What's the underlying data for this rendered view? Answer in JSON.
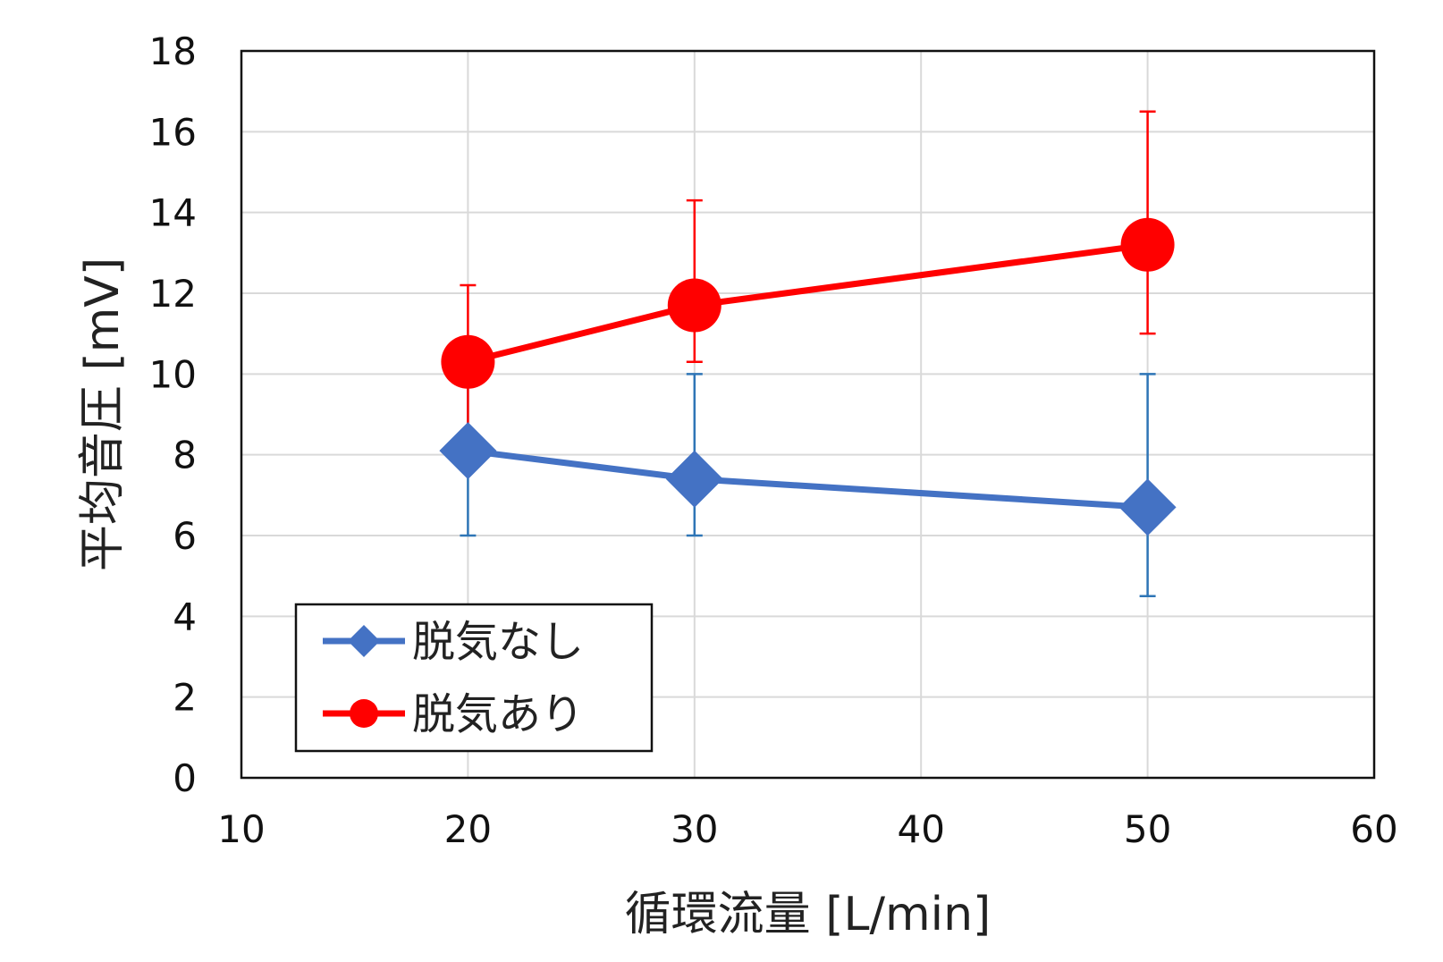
{
  "chart_data": {
    "type": "line",
    "xlabel": "循環流量 [L/min]",
    "ylabel": "平均音圧 [mV]",
    "xlim": [
      10,
      60
    ],
    "ylim": [
      0,
      18
    ],
    "xticks": [
      "10",
      "20",
      "30",
      "40",
      "50",
      "60"
    ],
    "yticks": [
      "0",
      "2",
      "4",
      "6",
      "8",
      "10",
      "12",
      "14",
      "16",
      "18"
    ],
    "grid": true,
    "legend_position": "bottom-left",
    "series": [
      {
        "name": "脱気なし",
        "color": "#4472C4",
        "marker": "diamond",
        "x": [
          20,
          30,
          50
        ],
        "y": [
          8.1,
          7.4,
          6.7
        ],
        "y_err_low": [
          6.0,
          6.0,
          4.5
        ],
        "y_err_high": [
          10.0,
          10.0,
          10.0
        ]
      },
      {
        "name": "脱気あり",
        "color": "#FF0000",
        "marker": "circle",
        "x": [
          20,
          30,
          50
        ],
        "y": [
          10.3,
          11.7,
          13.2
        ],
        "y_err_low": [
          8.0,
          10.3,
          11.0
        ],
        "y_err_high": [
          12.2,
          14.3,
          16.5
        ]
      }
    ]
  }
}
